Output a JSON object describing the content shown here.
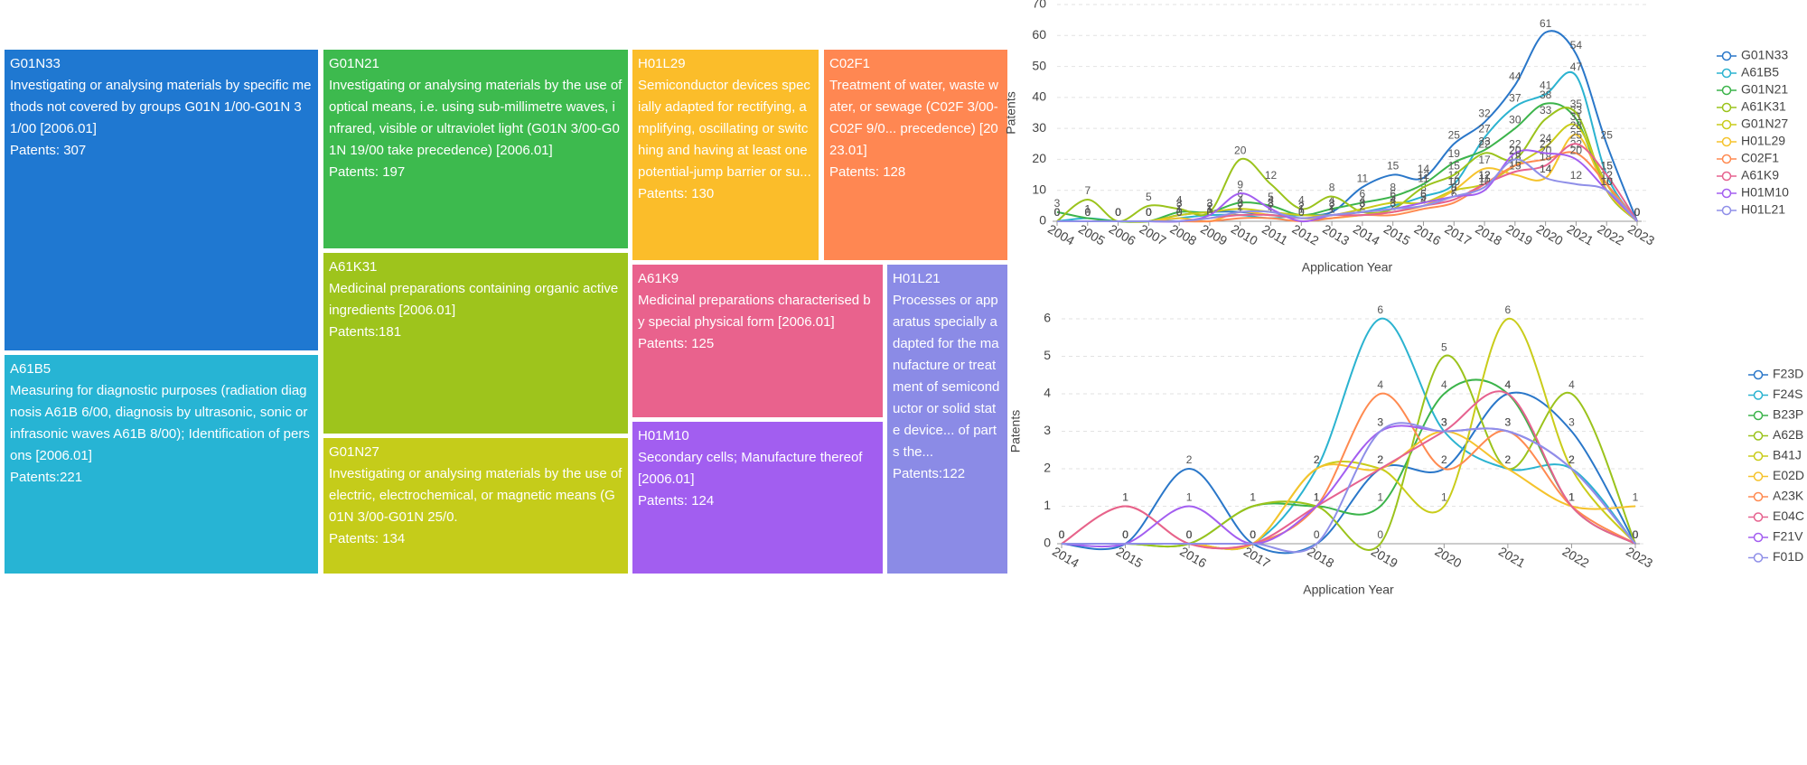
{
  "chart_data": [
    {
      "type": "treemap",
      "categories": [
        "G01N33",
        "A61B5",
        "G01N21",
        "A61K31",
        "G01N27",
        "H01L29",
        "C02F1",
        "A61K9",
        "H01M10",
        "H01L21"
      ],
      "descriptions": [
        "Investigating or analysing materials by specific methods not covered by groups G01N 1/00-G01N 31/00 [2006.01]",
        "Measuring for diagnostic purposes (radiation diagnosis A61B 6/00, diagnosis by ultrasonic, sonic or infrasonic waves A61B 8/00); Identification of persons [2006.01]",
        "Investigating or analysing materials by the use of optical means, i.e. using sub-millimetre waves, infrared, visible or ultraviolet light (G01N 3/00-G01N 19/00 take precedence) [2006.01]",
        "Medicinal preparations containing organic active ingredients [2006.01]",
        "Investigating or analysing materials by the use of electric, electrochemical, or magnetic means (G01N 3/00-G01N 25/0.",
        "Semiconductor devices specially adapted for rectifying, amplifying, oscillating or switching and having at least one potential-jump barrier or su...",
        "Treatment of water, waste water, or sewage (C02F 3/00-C02F 9/0... precedence) [2023.01]",
        "Medicinal preparations characterised by special physical form [2006.01]",
        "Secondary cells; Manufacture thereof [2006.01]",
        "Processes or apparatus specially adapted for the manufacture or treatment of semiconductor or solid state device... of parts the..."
      ],
      "values": [
        307,
        221,
        197,
        181,
        134,
        130,
        128,
        125,
        124,
        122
      ],
      "value_labels": [
        "Patents: 307",
        "Patents:221",
        "Patents: 197",
        "Patents:181",
        "Patents: 134",
        "Patents: 130",
        "Patents: 128",
        "Patents: 125",
        "Patents: 124",
        "Patents:122"
      ],
      "colors": [
        "#1f78d1",
        "#27b4d4",
        "#3dba4e",
        "#9ec41c",
        "#c5cc1a",
        "#fbbd2a",
        "#ff8752",
        "#e9628d",
        "#a25ef0",
        "#8b8be6"
      ]
    },
    {
      "type": "line",
      "x_label": "Application Year",
      "y_label": "Patents",
      "x": [
        2004,
        2005,
        2006,
        2007,
        2008,
        2009,
        2010,
        2011,
        2012,
        2013,
        2014,
        2015,
        2016,
        2017,
        2018,
        2019,
        2020,
        2021,
        2022,
        2023
      ],
      "ylim": [
        0,
        70
      ],
      "yticks": [
        0,
        10,
        20,
        30,
        40,
        50,
        60,
        70
      ],
      "grid": true,
      "series": [
        {
          "name": "G01N33",
          "color": "#2a77c9",
          "values": [
            0,
            0,
            0,
            0,
            2,
            3,
            3,
            2,
            2,
            3,
            11,
            15,
            14,
            25,
            32,
            44,
            61,
            54,
            25,
            0
          ]
        },
        {
          "name": "A61B5",
          "color": "#2bb3d0",
          "values": [
            0,
            1,
            0,
            0,
            1,
            2,
            2,
            1,
            2,
            2,
            3,
            5,
            8,
            12,
            27,
            37,
            41,
            47,
            15,
            0
          ]
        },
        {
          "name": "G01N21",
          "color": "#3cb44b",
          "values": [
            3,
            1,
            0,
            0,
            3,
            3,
            6,
            5,
            2,
            4,
            6,
            8,
            12,
            19,
            23,
            30,
            38,
            33,
            10,
            0
          ]
        },
        {
          "name": "A61K31",
          "color": "#9bc31c",
          "values": [
            0,
            7,
            0,
            5,
            4,
            3,
            20,
            12,
            4,
            8,
            3,
            4,
            11,
            15,
            22,
            20,
            33,
            35,
            10,
            0
          ]
        },
        {
          "name": "G01N27",
          "color": "#c9cc1a",
          "values": [
            0,
            0,
            0,
            0,
            2,
            3,
            4,
            3,
            2,
            2,
            4,
            6,
            6,
            10,
            12,
            18,
            24,
            31,
            12,
            0
          ]
        },
        {
          "name": "H01L29",
          "color": "#f5c32c",
          "values": [
            0,
            0,
            0,
            0,
            1,
            0,
            3,
            2,
            1,
            1,
            2,
            3,
            5,
            10,
            17,
            15,
            14,
            28,
            10,
            0
          ]
        },
        {
          "name": "C02F1",
          "color": "#ff8a50",
          "values": [
            0,
            0,
            0,
            0,
            0,
            0,
            1,
            1,
            0,
            1,
            2,
            2,
            4,
            6,
            12,
            18,
            20,
            22,
            12,
            0
          ]
        },
        {
          "name": "A61K9",
          "color": "#e6628f",
          "values": [
            0,
            0,
            0,
            0,
            0,
            1,
            2,
            2,
            1,
            2,
            2,
            3,
            5,
            7,
            12,
            16,
            18,
            25,
            15,
            0
          ]
        },
        {
          "name": "H01M10",
          "color": "#a35ef0",
          "values": [
            0,
            0,
            0,
            0,
            0,
            2,
            9,
            4,
            0,
            2,
            3,
            4,
            6,
            8,
            10,
            22,
            22,
            20,
            10,
            0
          ]
        },
        {
          "name": "H01L21",
          "color": "#8f8fe8",
          "values": [
            0,
            0,
            0,
            0,
            0,
            1,
            3,
            3,
            1,
            2,
            3,
            4,
            5,
            8,
            11,
            20,
            14,
            12,
            10,
            0
          ]
        }
      ]
    },
    {
      "type": "line",
      "x_label": "Application Year",
      "y_label": "Patents",
      "x": [
        2014,
        2015,
        2016,
        2017,
        2018,
        2019,
        2020,
        2021,
        2022,
        2023
      ],
      "ylim": [
        0,
        6
      ],
      "yticks": [
        0,
        1,
        2,
        3,
        4,
        5,
        6
      ],
      "grid": true,
      "series": [
        {
          "name": "F23D",
          "color": "#2a77c9",
          "values": [
            0,
            0,
            2,
            0,
            0,
            2,
            2,
            4,
            3,
            0
          ]
        },
        {
          "name": "F24S",
          "color": "#2bb3d0",
          "values": [
            0,
            0,
            0,
            0,
            2,
            6,
            3,
            2,
            2,
            0
          ]
        },
        {
          "name": "B23P",
          "color": "#3cb44b",
          "values": [
            0,
            0,
            0,
            1,
            1,
            1,
            4,
            4,
            1,
            0
          ]
        },
        {
          "name": "A62B",
          "color": "#9bc31c",
          "values": [
            0,
            0,
            0,
            1,
            1,
            0,
            5,
            2,
            4,
            0
          ]
        },
        {
          "name": "B41J",
          "color": "#c9cc1a",
          "values": [
            0,
            0,
            0,
            0,
            2,
            2,
            1,
            6,
            2,
            0
          ]
        },
        {
          "name": "E02D",
          "color": "#f5c32c",
          "values": [
            0,
            0,
            0,
            0,
            2,
            2,
            3,
            2,
            1,
            1
          ]
        },
        {
          "name": "A23K",
          "color": "#ff8a50",
          "values": [
            0,
            1,
            0,
            0,
            1,
            4,
            2,
            3,
            1,
            0
          ]
        },
        {
          "name": "E04C",
          "color": "#e6628f",
          "values": [
            0,
            1,
            0,
            0,
            1,
            2,
            3,
            4,
            1,
            0
          ]
        },
        {
          "name": "F21V",
          "color": "#a35ef0",
          "values": [
            0,
            0,
            1,
            0,
            1,
            3,
            3,
            3,
            2,
            0
          ]
        },
        {
          "name": "F01D",
          "color": "#8f8fe8",
          "values": [
            0,
            0,
            0,
            0,
            0,
            3,
            3,
            3,
            2,
            0
          ]
        }
      ]
    }
  ]
}
